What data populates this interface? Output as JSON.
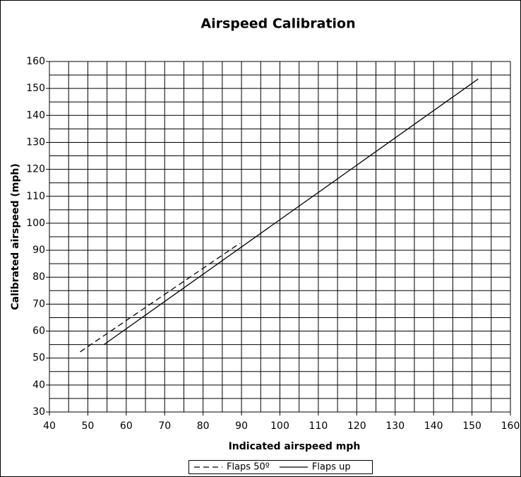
{
  "chart_data": {
    "type": "line",
    "title": "Airspeed Calibration",
    "x_label": "Indicated airspeed mph",
    "y_label": "Calibrated airspeed (mph)",
    "series": [
      {
        "name": "Flaps 50º",
        "color": "#000000",
        "style": "dashed",
        "x": [
          48,
          89.6
        ],
        "values": [
          52.3,
          92.6
        ]
      },
      {
        "name": "Flaps up",
        "color": "#000000",
        "style": "solid",
        "x": [
          54.2,
          151.6
        ],
        "values": [
          55,
          153.5
        ]
      }
    ],
    "xlim": [
      40,
      160
    ],
    "xticks": [
      40,
      50,
      60,
      70,
      80,
      90,
      100,
      110,
      120,
      130,
      140,
      150,
      160
    ],
    "xminor": [
      45,
      55,
      65,
      75,
      85,
      95,
      105,
      115,
      125,
      135,
      145,
      155
    ],
    "ylim": [
      30,
      160
    ],
    "yticks": [
      30,
      40,
      50,
      60,
      70,
      80,
      90,
      100,
      110,
      120,
      130,
      140,
      150,
      160
    ],
    "yminor": [
      35,
      45,
      55,
      65,
      75,
      85,
      95,
      105,
      115,
      125,
      135,
      145,
      155
    ],
    "grid": true,
    "legend": "bottom"
  }
}
